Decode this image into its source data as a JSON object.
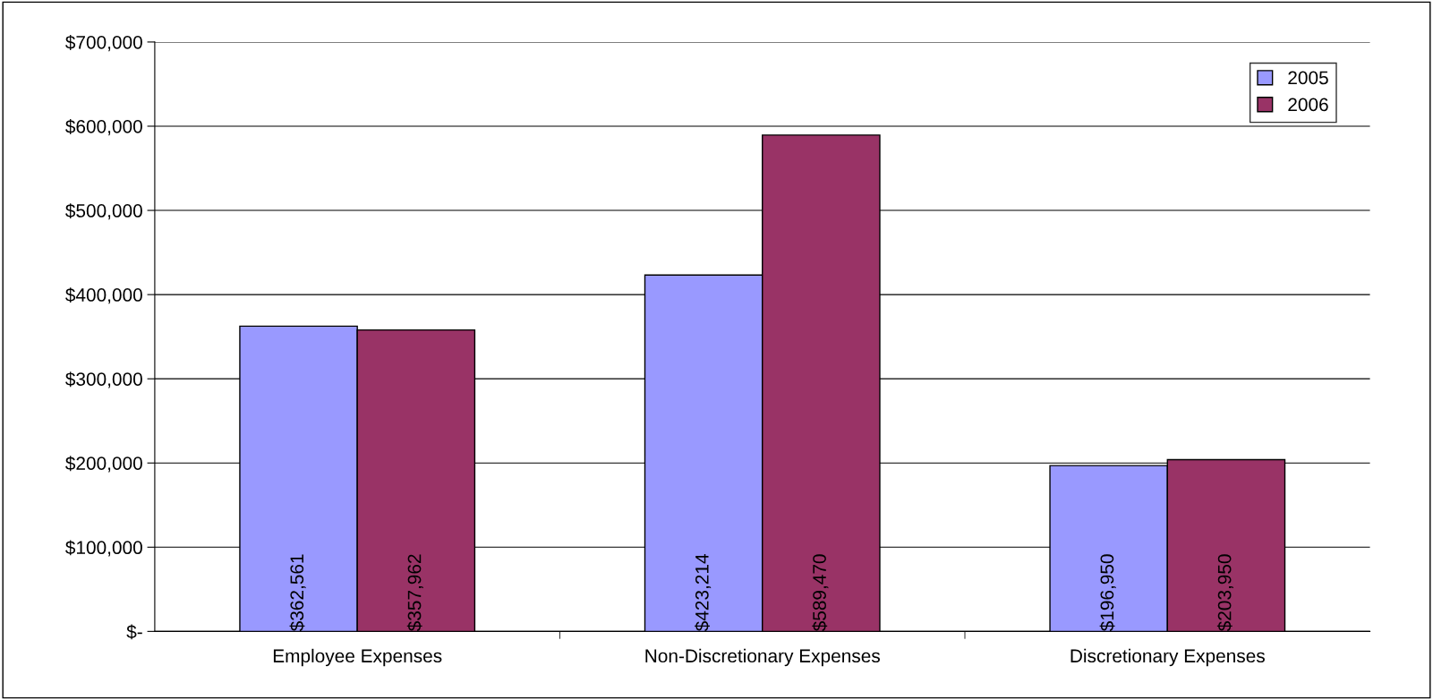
{
  "chart_data": {
    "type": "bar",
    "categories": [
      "Employee Expenses",
      "Non-Discretionary Expenses",
      "Discretionary Expenses"
    ],
    "series": [
      {
        "name": "2005",
        "color": "#9999ff",
        "values": [
          362561,
          423214,
          196950
        ],
        "value_labels": [
          "$362,561",
          "$423,214",
          "$196,950"
        ]
      },
      {
        "name": "2006",
        "color": "#993366",
        "values": [
          357962,
          589470,
          203950
        ],
        "value_labels": [
          "$357,962",
          "$589,470",
          "$203,950"
        ]
      }
    ],
    "ylim": [
      0,
      700000
    ],
    "yticks": [
      {
        "value": 0,
        "label": "$-"
      },
      {
        "value": 100000,
        "label": "$100,000"
      },
      {
        "value": 200000,
        "label": "$200,000"
      },
      {
        "value": 300000,
        "label": "$300,000"
      },
      {
        "value": 400000,
        "label": "$400,000"
      },
      {
        "value": 500000,
        "label": "$500,000"
      },
      {
        "value": 600000,
        "label": "$600,000"
      },
      {
        "value": 700000,
        "label": "$700,000"
      }
    ],
    "grid": "y",
    "legend": "top right"
  }
}
